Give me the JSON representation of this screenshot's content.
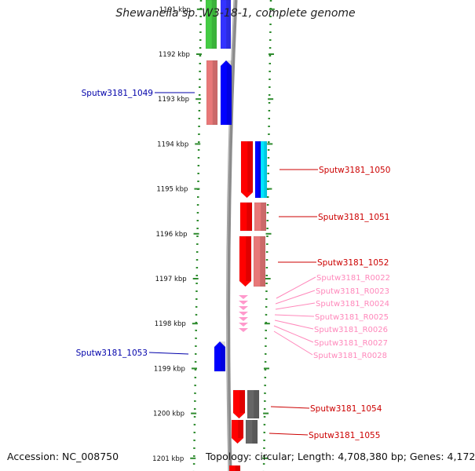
{
  "title": "Shewanella sp. W3-18-1, complete genome",
  "accession_text": "Accession: NC_008750",
  "topology_text": "Topology: circular; Length: 4,708,380 bp; Genes: 4,172",
  "colors": {
    "axis": "#808080",
    "ticks": "#2e8b2e",
    "forward_cds": "#ff0000",
    "forward_other": "#e87878",
    "reverse_cds": "#0000ff",
    "reverse_light": "#aaaaff",
    "rna": "#ff99cc",
    "label_red": "#cc0000",
    "label_blue": "#0000aa",
    "label_pink": "#ff88bb"
  },
  "scale_labels": [
    {
      "text": "1191 kbp",
      "kbp": 1191
    },
    {
      "text": "1192 kbp",
      "kbp": 1192
    },
    {
      "text": "1193 kbp",
      "kbp": 1193
    },
    {
      "text": "1194 kbp",
      "kbp": 1194
    },
    {
      "text": "1195 kbp",
      "kbp": 1195
    },
    {
      "text": "1196 kbp",
      "kbp": 1196
    },
    {
      "text": "1197 kbp",
      "kbp": 1197
    },
    {
      "text": "1198 kbp",
      "kbp": 1198
    },
    {
      "text": "1199 kbp",
      "kbp": 1199
    },
    {
      "text": "1200 kbp",
      "kbp": 1200
    },
    {
      "text": "1201 kbp",
      "kbp": 1201
    }
  ],
  "gene_labels": [
    {
      "text": "Sputw3181_1049",
      "color": "#0000aa",
      "side": "left"
    },
    {
      "text": "Sputw3181_1050",
      "color": "#cc0000",
      "side": "right"
    },
    {
      "text": "Sputw3181_1051",
      "color": "#cc0000",
      "side": "right"
    },
    {
      "text": "Sputw3181_1052",
      "color": "#cc0000",
      "side": "right"
    },
    {
      "text": "Sputw3181_R0022",
      "color": "#ff88bb",
      "side": "right"
    },
    {
      "text": "Sputw3181_R0023",
      "color": "#ff88bb",
      "side": "right"
    },
    {
      "text": "Sputw3181_R0024",
      "color": "#ff88bb",
      "side": "right"
    },
    {
      "text": "Sputw3181_R0025",
      "color": "#ff88bb",
      "side": "right"
    },
    {
      "text": "Sputw3181_R0026",
      "color": "#ff88bb",
      "side": "right"
    },
    {
      "text": "Sputw3181_R0027",
      "color": "#ff88bb",
      "side": "right"
    },
    {
      "text": "Sputw3181_R0028",
      "color": "#ff88bb",
      "side": "right"
    },
    {
      "text": "Sputw3181_1053",
      "color": "#0000aa",
      "side": "left"
    },
    {
      "text": "Sputw3181_1054",
      "color": "#cc0000",
      "side": "right"
    },
    {
      "text": "Sputw3181_1055",
      "color": "#cc0000",
      "side": "right"
    }
  ]
}
